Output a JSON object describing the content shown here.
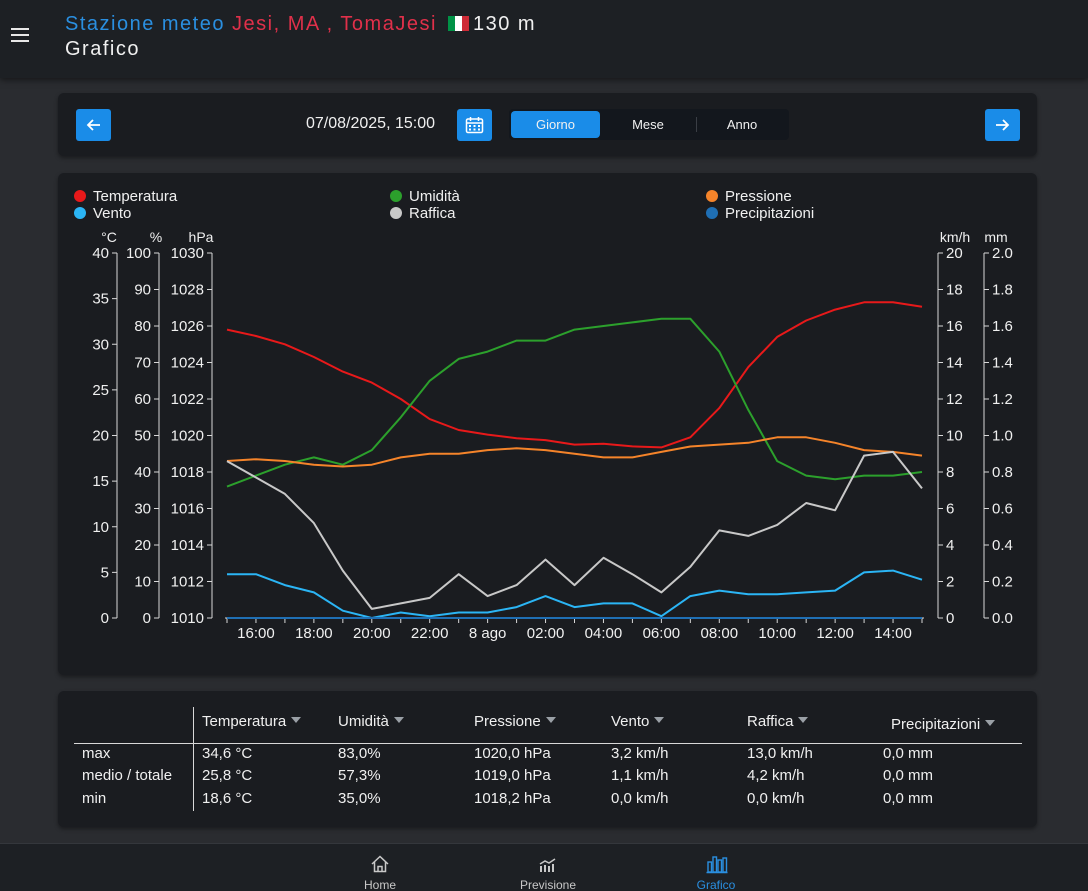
{
  "header": {
    "station_prefix": "Stazione meteo",
    "location": "Jesi, MA , TomaJesi",
    "altitude": "130 m",
    "page_title": "Grafico"
  },
  "nav": {
    "datetime": "07/08/2025, 15:00",
    "periods": [
      "Giorno",
      "Mese",
      "Anno"
    ],
    "active_period": "Giorno"
  },
  "legend": [
    {
      "label": "Temperatura",
      "color": "#e8191a"
    },
    {
      "label": "Umidità",
      "color": "#2ca02c"
    },
    {
      "label": "Pressione",
      "color": "#f5842a"
    },
    {
      "label": "Vento",
      "color": "#2bb5f5"
    },
    {
      "label": "Raffica",
      "color": "#c8c8c8"
    },
    {
      "label": "Precipitazioni",
      "color": "#1f6fb4"
    }
  ],
  "chart_data": {
    "type": "line",
    "axes": {
      "temp": {
        "unit": "°C",
        "ticks": [
          "40",
          "35",
          "30",
          "25",
          "20",
          "15",
          "10",
          "5",
          "0"
        ],
        "range": [
          0,
          40
        ]
      },
      "humidity": {
        "unit": "%",
        "ticks": [
          "100",
          "90",
          "80",
          "70",
          "60",
          "50",
          "40",
          "30",
          "20",
          "10",
          "0"
        ],
        "range": [
          0,
          100
        ]
      },
      "pressure": {
        "unit": "hPa",
        "ticks": [
          "1030",
          "1028",
          "1026",
          "1024",
          "1022",
          "1020",
          "1018",
          "1016",
          "1014",
          "1012",
          "1010"
        ],
        "range": [
          1010,
          1030
        ]
      },
      "wind": {
        "unit": "km/h",
        "ticks": [
          "20",
          "18",
          "16",
          "14",
          "12",
          "10",
          "8",
          "6",
          "4",
          "2",
          "0"
        ],
        "range": [
          0,
          20
        ]
      },
      "rain": {
        "unit": "mm",
        "ticks": [
          "2.0",
          "1.8",
          "1.6",
          "1.4",
          "1.2",
          "1.0",
          "0.8",
          "0.6",
          "0.4",
          "0.2",
          "0.0"
        ],
        "range": [
          0,
          2
        ]
      }
    },
    "x_ticks": [
      "16:00",
      "18:00",
      "20:00",
      "22:00",
      "8 ago",
      "02:00",
      "04:00",
      "06:00",
      "08:00",
      "10:00",
      "12:00",
      "14:00"
    ],
    "x_hours": [
      "15:00",
      "16:00",
      "17:00",
      "18:00",
      "19:00",
      "20:00",
      "21:00",
      "22:00",
      "23:00",
      "00:00",
      "01:00",
      "02:00",
      "03:00",
      "04:00",
      "05:00",
      "06:00",
      "07:00",
      "08:00",
      "09:00",
      "10:00",
      "11:00",
      "12:00",
      "13:00",
      "14:00",
      "15:00"
    ],
    "series": [
      {
        "name": "Temperatura",
        "axis": "temp",
        "color": "#e8191a",
        "values": [
          31.6,
          30.9,
          30.0,
          28.6,
          27.0,
          25.8,
          24.0,
          21.8,
          20.6,
          20.1,
          19.7,
          19.5,
          19.0,
          19.1,
          18.8,
          18.7,
          19.8,
          23.0,
          27.5,
          30.8,
          32.6,
          33.8,
          34.6,
          34.6,
          34.1
        ]
      },
      {
        "name": "Umidità",
        "axis": "humidity",
        "color": "#2ca02c",
        "values": [
          36,
          39,
          42,
          44,
          42,
          46,
          55,
          65,
          71,
          73,
          76,
          76,
          79,
          80,
          81,
          82,
          82,
          73,
          57,
          43,
          39,
          38,
          39,
          39,
          40
        ]
      },
      {
        "name": "Pressione",
        "axis": "pressure",
        "color": "#f5842a",
        "values": [
          1018.6,
          1018.7,
          1018.6,
          1018.4,
          1018.3,
          1018.4,
          1018.8,
          1019.0,
          1019.0,
          1019.2,
          1019.3,
          1019.2,
          1019.0,
          1018.8,
          1018.8,
          1019.1,
          1019.4,
          1019.5,
          1019.6,
          1019.9,
          1019.9,
          1019.6,
          1019.2,
          1019.1,
          1018.9
        ]
      },
      {
        "name": "Vento",
        "axis": "wind",
        "color": "#2bb5f5",
        "values": [
          2.4,
          2.4,
          1.8,
          1.4,
          0.4,
          0.0,
          0.3,
          0.1,
          0.3,
          0.3,
          0.6,
          1.2,
          0.6,
          0.8,
          0.8,
          0.1,
          1.2,
          1.5,
          1.3,
          1.3,
          1.4,
          1.5,
          2.5,
          2.6,
          2.1
        ]
      },
      {
        "name": "Raffica",
        "axis": "wind",
        "color": "#c8c8c8",
        "values": [
          8.6,
          7.7,
          6.8,
          5.2,
          2.6,
          0.5,
          0.8,
          1.1,
          2.4,
          1.2,
          1.8,
          3.2,
          1.8,
          3.3,
          2.4,
          1.4,
          2.8,
          4.8,
          4.5,
          5.1,
          6.3,
          5.9,
          8.9,
          9.1,
          7.1
        ]
      },
      {
        "name": "Precipitazioni",
        "axis": "rain",
        "color": "#1f6fb4",
        "values": [
          0,
          0,
          0,
          0,
          0,
          0,
          0,
          0,
          0,
          0,
          0,
          0,
          0,
          0,
          0,
          0,
          0,
          0,
          0,
          0,
          0,
          0,
          0,
          0,
          0
        ]
      }
    ]
  },
  "table": {
    "headers": [
      "Temperatura",
      "Umidità",
      "Pressione",
      "Vento",
      "Raffica",
      "Precipitazioni"
    ],
    "rows": [
      {
        "label": "max",
        "values": [
          "34,6 °C",
          "83,0%",
          "1020,0 hPa",
          "3,2 km/h",
          "13,0 km/h",
          "0,0 mm"
        ]
      },
      {
        "label": "medio / totale",
        "values": [
          "25,8 °C",
          "57,3%",
          "1019,0 hPa",
          "1,1 km/h",
          "4,2 km/h",
          "0,0 mm"
        ]
      },
      {
        "label": "min",
        "values": [
          "18,6 °C",
          "35,0%",
          "1018,2 hPa",
          "0,0 km/h",
          "0,0 km/h",
          "0,0 mm"
        ]
      }
    ]
  },
  "bottom_nav": [
    {
      "label": "Home",
      "icon": "home-icon",
      "active": false
    },
    {
      "label": "Previsione",
      "icon": "forecast-chart-icon",
      "active": false
    },
    {
      "label": "Grafico",
      "icon": "bar-chart-icon",
      "active": true
    }
  ]
}
